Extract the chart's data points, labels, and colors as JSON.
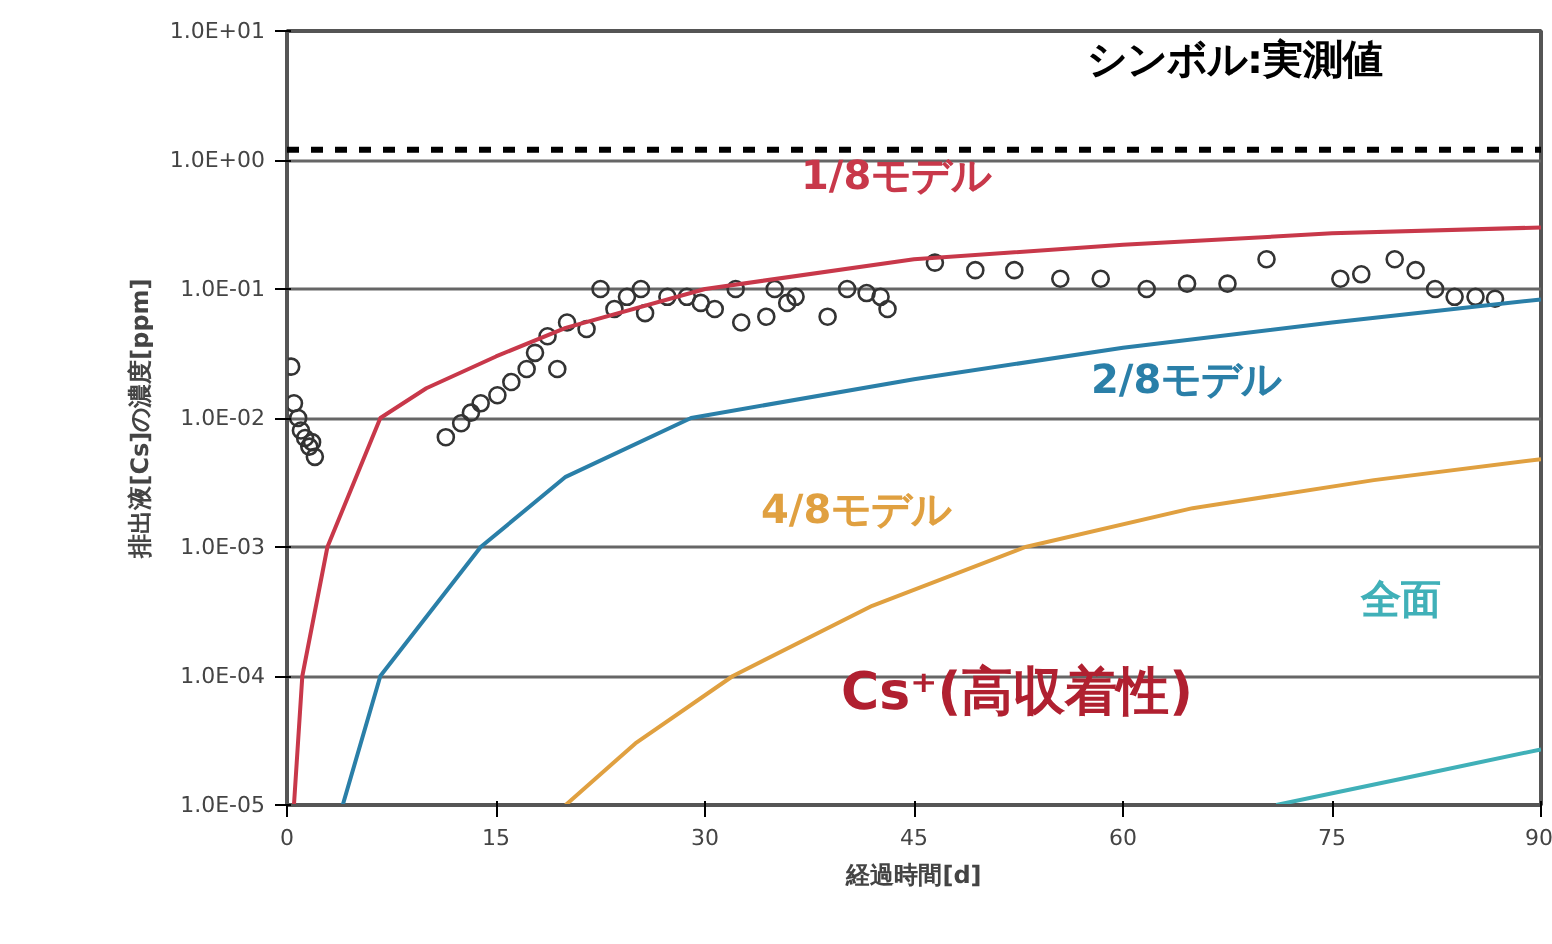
{
  "chart_data": {
    "type": "line",
    "xlabel": "経過時間[d]",
    "ylabel": "排出液[Cs]の濃度[ppm]",
    "log": "y",
    "xlim": [
      0,
      90
    ],
    "xticks": [
      0,
      15,
      30,
      45,
      60,
      75,
      90
    ],
    "ylim": [
      1e-05,
      10
    ],
    "yticks": [
      {
        "value": 1e-05,
        "label": "1.0E-05"
      },
      {
        "value": 0.0001,
        "label": "1.0E-04"
      },
      {
        "value": 0.001,
        "label": "1.0E-03"
      },
      {
        "value": 0.01,
        "label": "1.0E-02"
      },
      {
        "value": 0.1,
        "label": "1.0E-01"
      },
      {
        "value": 1,
        "label": "1.0E+00"
      },
      {
        "value": 10,
        "label": "1.0E+01"
      }
    ],
    "grid": "y",
    "marker": "none",
    "line_style": "solid",
    "ref_lines": [
      {
        "axis": "y",
        "value": 1.2,
        "color": "#000000",
        "line_style": "dashed"
      }
    ],
    "annotations": [
      "シンボル:実測値",
      "Cs⁺(高収着性)"
    ],
    "series": [
      {
        "type": "scatter",
        "marker": "circle",
        "color": "#333333",
        "x": [
          0.3,
          0.5,
          0.8,
          1.0,
          1.3,
          1.6,
          1.8,
          2.0,
          11.4,
          12.5,
          13.2,
          13.9,
          15.1,
          16.1,
          17.2,
          17.8,
          19.4,
          18.7,
          20.1,
          21.5,
          22.5,
          23.5,
          24.4,
          25.7,
          25.4,
          27.3,
          28.7,
          29.7,
          30.7,
          32.2,
          32.6,
          34.4,
          36.5,
          35.0,
          35.9,
          38.8,
          40.2,
          41.6,
          42.6,
          43.1,
          46.5,
          49.4,
          52.2,
          55.5,
          58.4,
          61.7,
          64.6,
          67.5,
          70.3,
          75.6,
          77.1,
          79.5,
          81.0,
          82.4,
          83.8,
          85.3,
          86.7
        ],
        "values": [
          0.025,
          0.013,
          0.01,
          0.008,
          0.007,
          0.006,
          0.0065,
          0.005,
          0.0071,
          0.0091,
          0.011,
          0.013,
          0.015,
          0.019,
          0.024,
          0.032,
          0.024,
          0.043,
          0.055,
          0.049,
          0.1,
          0.07,
          0.087,
          0.065,
          0.1,
          0.087,
          0.087,
          0.078,
          0.07,
          0.1,
          0.055,
          0.061,
          0.087,
          0.1,
          0.078,
          0.061,
          0.1,
          0.093,
          0.087,
          0.07,
          0.16,
          0.14,
          0.14,
          0.12,
          0.12,
          0.1,
          0.11,
          0.11,
          0.17,
          0.12,
          0.13,
          0.17,
          0.14,
          0.1,
          0.087,
          0.087,
          0.084
        ]
      },
      {
        "name": "1/8モデル",
        "color": "#c8384a",
        "x": [
          0.5,
          1.1,
          2.9,
          6.7,
          10,
          15,
          20,
          30,
          45,
          60,
          75,
          90
        ],
        "values": [
          1e-05,
          0.0001,
          0.001,
          0.01,
          0.017,
          0.03,
          0.05,
          0.1,
          0.17,
          0.22,
          0.27,
          0.3
        ]
      },
      {
        "name": "2/8モデル",
        "color": "#2a7fa8",
        "x": [
          4,
          6.7,
          13.9,
          20,
          29,
          45,
          60,
          75,
          90
        ],
        "values": [
          1e-05,
          0.0001,
          0.001,
          0.0035,
          0.01,
          0.02,
          0.035,
          0.055,
          0.083
        ]
      },
      {
        "name": "4/8モデル",
        "color": "#e0a040",
        "x": [
          20,
          25,
          32,
          42,
          53,
          65,
          78,
          90
        ],
        "values": [
          1e-05,
          3e-05,
          0.0001,
          0.00035,
          0.001,
          0.002,
          0.0033,
          0.0048
        ]
      },
      {
        "name": "全面",
        "color": "#40b0b8",
        "x": [
          71,
          80,
          90
        ],
        "values": [
          1e-05,
          1.6e-05,
          2.7e-05
        ]
      }
    ]
  }
}
